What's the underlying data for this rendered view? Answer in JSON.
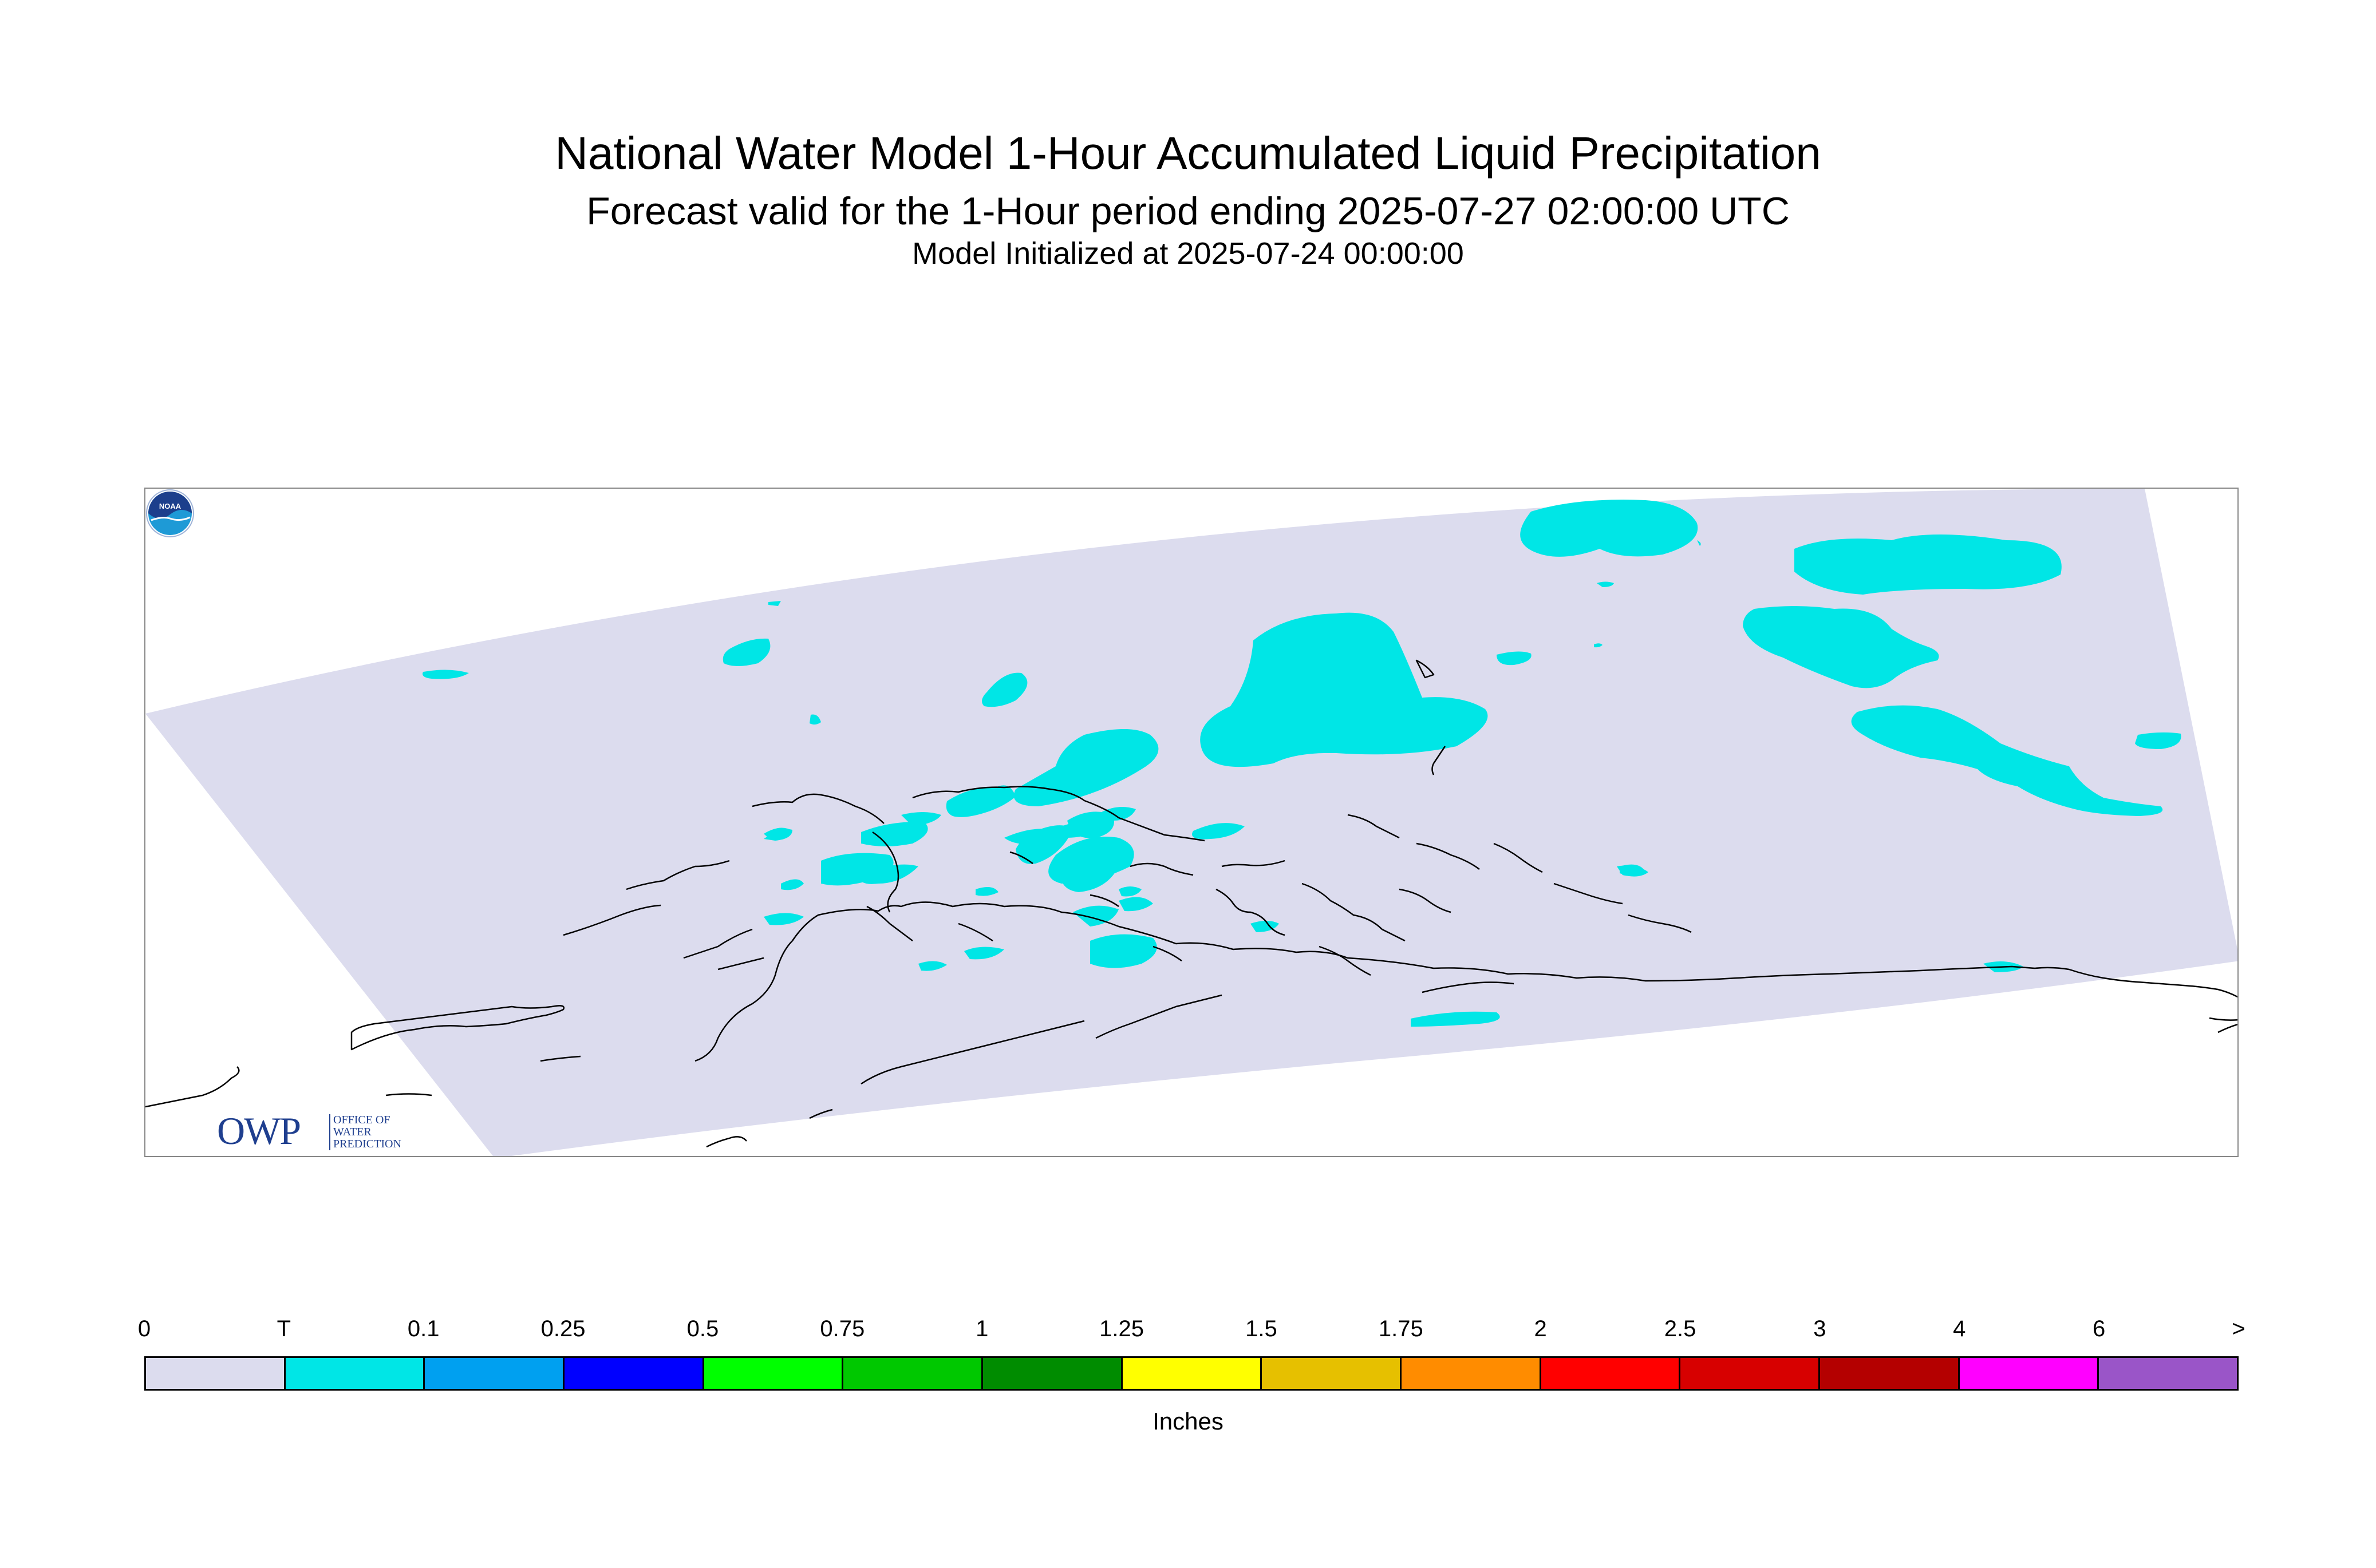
{
  "title": "National Water Model 1-Hour Accumulated Liquid Precipitation",
  "subtitle": "Forecast valid for the 1-Hour period ending 2025-07-27 02:00:00 UTC",
  "init_line": "Model Initialized at 2025-07-24 00:00:00",
  "logos": {
    "owp_letters": "OWP",
    "owp_line1": "OFFICE OF",
    "owp_line2": "WATER",
    "owp_line3": "PREDICTION",
    "noaa": "NOAA"
  },
  "colors": {
    "no_precip": "#dcdcee",
    "trace": "#00e6e6",
    "coastline": "#000000"
  },
  "legend": {
    "units": "Inches",
    "tick_labels": [
      "0",
      "T",
      "0.1",
      "0.25",
      "0.5",
      "0.75",
      "1",
      "1.25",
      "1.5",
      "1.75",
      "2",
      "2.5",
      "3",
      "4",
      "6",
      ">"
    ],
    "swatch_colors": [
      "#dcdcee",
      "#00e6e6",
      "#00a0f0",
      "#0000ff",
      "#00ff00",
      "#00c800",
      "#008c00",
      "#ffff00",
      "#e6c000",
      "#ff8c00",
      "#ff0000",
      "#d70000",
      "#b40000",
      "#ff00ff",
      "#9a55c8"
    ]
  }
}
